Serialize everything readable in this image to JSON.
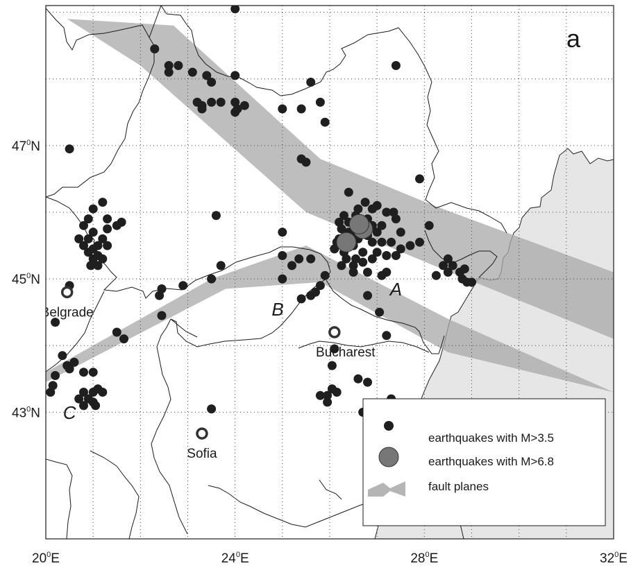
{
  "panel_label": "a",
  "axes": {
    "x_ticks": [
      {
        "value": 20,
        "deg": "20",
        "sup": "0",
        "hem": "E"
      },
      {
        "value": 24,
        "deg": "24",
        "sup": "0",
        "hem": "E"
      },
      {
        "value": 28,
        "deg": "28",
        "sup": "0",
        "hem": "E"
      },
      {
        "value": 32,
        "deg": "32",
        "sup": "0",
        "hem": "E"
      }
    ],
    "y_ticks": [
      {
        "value": 47,
        "deg": "47",
        "sup": "0",
        "hem": "N"
      },
      {
        "value": 45,
        "deg": "45",
        "sup": "0",
        "hem": "N"
      },
      {
        "value": 43,
        "deg": "43",
        "sup": "0",
        "hem": "N"
      }
    ],
    "lon_range": [
      20,
      32
    ],
    "lat_range": [
      41.1,
      49.1
    ],
    "grid": true
  },
  "cities": [
    {
      "name": "Belgrade",
      "lon": 20.45,
      "lat": 44.8
    },
    {
      "name": "Bucharest",
      "lon": 26.1,
      "lat": 44.2
    },
    {
      "name": "Sofia",
      "lon": 23.3,
      "lat": 42.68
    }
  ],
  "zone_labels": [
    {
      "text": "A",
      "lon": 27.4,
      "lat": 44.75
    },
    {
      "text": "B",
      "lon": 24.9,
      "lat": 44.45
    },
    {
      "text": "C",
      "lon": 20.5,
      "lat": 42.9
    }
  ],
  "fault_planes": [
    [
      [
        20.45,
        48.9
      ],
      [
        22.7,
        48.8
      ],
      [
        25.8,
        46.8
      ],
      [
        28.2,
        46.1
      ],
      [
        32,
        45.1
      ],
      [
        32,
        44.1
      ],
      [
        28.2,
        45.2
      ],
      [
        25.5,
        46.0
      ],
      [
        22.0,
        48.2
      ]
    ],
    [
      [
        20.0,
        43.6
      ],
      [
        23.5,
        45.0
      ],
      [
        25.5,
        45.5
      ],
      [
        28.5,
        44.4
      ],
      [
        32,
        43.3
      ],
      [
        28.5,
        43.9
      ],
      [
        25.8,
        44.95
      ],
      [
        23.8,
        44.85
      ],
      [
        20.0,
        43.45
      ]
    ]
  ],
  "legend": {
    "items": [
      {
        "label": "earthquakes with M>3.5",
        "symbol": "small-dot"
      },
      {
        "label": "earthquakes with M>6.8",
        "symbol": "large-dot"
      },
      {
        "label": "fault planes",
        "symbol": "fault-swatch"
      }
    ]
  },
  "earthquakes_large": [
    {
      "lon": 26.7,
      "lat": 45.75
    },
    {
      "lon": 26.62,
      "lat": 45.82
    },
    {
      "lon": 26.35,
      "lat": 45.55
    }
  ],
  "earthquakes_small": [
    [
      24.0,
      49.05
    ],
    [
      22.3,
      48.45
    ],
    [
      22.6,
      48.2
    ],
    [
      22.8,
      48.2
    ],
    [
      22.6,
      48.1
    ],
    [
      23.1,
      48.1
    ],
    [
      23.4,
      48.05
    ],
    [
      23.5,
      47.95
    ],
    [
      24.0,
      48.05
    ],
    [
      25.6,
      47.95
    ],
    [
      27.4,
      48.2
    ],
    [
      23.3,
      47.6
    ],
    [
      23.5,
      47.65
    ],
    [
      23.2,
      47.65
    ],
    [
      23.3,
      47.55
    ],
    [
      23.7,
      47.65
    ],
    [
      24.0,
      47.65
    ],
    [
      24.05,
      47.55
    ],
    [
      24.2,
      47.6
    ],
    [
      24.0,
      47.5
    ],
    [
      25.0,
      47.55
    ],
    [
      25.4,
      47.55
    ],
    [
      25.8,
      47.65
    ],
    [
      25.9,
      47.35
    ],
    [
      20.5,
      46.95
    ],
    [
      25.4,
      46.8
    ],
    [
      25.5,
      46.75
    ],
    [
      27.9,
      46.5
    ],
    [
      20.8,
      45.8
    ],
    [
      20.9,
      45.9
    ],
    [
      20.7,
      45.6
    ],
    [
      20.9,
      45.6
    ],
    [
      21.0,
      45.7
    ],
    [
      21.1,
      45.5
    ],
    [
      20.9,
      45.4
    ],
    [
      21.0,
      45.3
    ],
    [
      21.1,
      45.35
    ],
    [
      20.8,
      45.5
    ],
    [
      21.2,
      45.6
    ],
    [
      21.3,
      45.5
    ],
    [
      21.1,
      45.2
    ],
    [
      21.2,
      45.3
    ],
    [
      20.95,
      45.2
    ],
    [
      21.3,
      45.9
    ],
    [
      21.6,
      45.85
    ],
    [
      21.5,
      45.8
    ],
    [
      21.0,
      46.05
    ],
    [
      21.2,
      46.15
    ],
    [
      21.3,
      45.75
    ],
    [
      21.0,
      45.45
    ],
    [
      23.6,
      45.95
    ],
    [
      25.0,
      45.7
    ],
    [
      25.0,
      45.35
    ],
    [
      25.2,
      45.2
    ],
    [
      25.35,
      45.3
    ],
    [
      25.6,
      45.3
    ],
    [
      25.4,
      44.7
    ],
    [
      25.6,
      44.75
    ],
    [
      25.7,
      44.8
    ],
    [
      25.8,
      44.9
    ],
    [
      25.9,
      45.05
    ],
    [
      25.0,
      45.0
    ],
    [
      23.7,
      45.2
    ],
    [
      23.5,
      45.0
    ],
    [
      22.9,
      44.9
    ],
    [
      22.45,
      44.85
    ],
    [
      22.4,
      44.75
    ],
    [
      22.45,
      44.45
    ],
    [
      20.5,
      44.9
    ],
    [
      21.5,
      44.2
    ],
    [
      21.65,
      44.1
    ],
    [
      20.2,
      44.35
    ],
    [
      20.35,
      43.85
    ],
    [
      20.45,
      43.7
    ],
    [
      20.6,
      43.75
    ],
    [
      20.5,
      43.65
    ],
    [
      20.8,
      43.6
    ],
    [
      21.0,
      43.6
    ],
    [
      20.7,
      43.2
    ],
    [
      20.8,
      43.3
    ],
    [
      20.9,
      43.2
    ],
    [
      21.0,
      43.3
    ],
    [
      21.1,
      43.35
    ],
    [
      20.8,
      43.1
    ],
    [
      21.0,
      43.15
    ],
    [
      21.2,
      43.3
    ],
    [
      20.1,
      43.3
    ],
    [
      20.15,
      43.4
    ],
    [
      20.2,
      43.55
    ],
    [
      21.05,
      43.1
    ],
    [
      23.5,
      43.05
    ],
    [
      26.1,
      43.95
    ],
    [
      26.05,
      43.7
    ],
    [
      26.6,
      43.5
    ],
    [
      26.8,
      43.45
    ],
    [
      25.95,
      43.25
    ],
    [
      26.05,
      43.35
    ],
    [
      26.15,
      43.3
    ],
    [
      25.95,
      43.15
    ],
    [
      25.8,
      43.25
    ],
    [
      26.7,
      43.0
    ],
    [
      27.3,
      43.2
    ],
    [
      26.5,
      45.5
    ],
    [
      26.6,
      45.6
    ],
    [
      26.4,
      45.7
    ],
    [
      26.7,
      45.4
    ],
    [
      26.3,
      45.4
    ],
    [
      26.55,
      45.3
    ],
    [
      26.8,
      45.65
    ],
    [
      26.9,
      45.55
    ],
    [
      27.0,
      45.4
    ],
    [
      26.2,
      45.6
    ],
    [
      26.25,
      45.75
    ],
    [
      26.4,
      45.85
    ],
    [
      26.55,
      45.95
    ],
    [
      26.8,
      45.9
    ],
    [
      26.9,
      45.8
    ],
    [
      27.0,
      45.7
    ],
    [
      27.1,
      45.55
    ],
    [
      26.35,
      45.3
    ],
    [
      26.5,
      45.2
    ],
    [
      26.7,
      45.25
    ],
    [
      26.9,
      45.3
    ],
    [
      27.2,
      45.35
    ],
    [
      27.3,
      45.55
    ],
    [
      27.1,
      45.8
    ],
    [
      27.0,
      46.1
    ],
    [
      26.75,
      46.15
    ],
    [
      26.4,
      46.3
    ],
    [
      26.6,
      46.05
    ],
    [
      26.9,
      46.05
    ],
    [
      27.2,
      46.0
    ],
    [
      27.4,
      45.9
    ],
    [
      27.5,
      45.7
    ],
    [
      27.4,
      45.35
    ],
    [
      26.8,
      45.1
    ],
    [
      26.5,
      45.1
    ],
    [
      27.2,
      45.1
    ],
    [
      26.25,
      45.2
    ],
    [
      26.1,
      45.45
    ],
    [
      26.15,
      45.55
    ],
    [
      26.3,
      45.95
    ],
    [
      26.6,
      45.75
    ],
    [
      26.45,
      45.65
    ],
    [
      26.8,
      44.75
    ],
    [
      27.05,
      44.5
    ],
    [
      27.2,
      44.15
    ],
    [
      27.1,
      45.05
    ],
    [
      27.5,
      45.45
    ],
    [
      27.35,
      46.0
    ],
    [
      27.9,
      45.55
    ],
    [
      28.1,
      45.8
    ],
    [
      28.4,
      45.2
    ],
    [
      28.5,
      45.1
    ],
    [
      28.6,
      45.2
    ],
    [
      28.5,
      45.3
    ],
    [
      28.25,
      45.05
    ],
    [
      28.75,
      45.1
    ],
    [
      28.85,
      45.15
    ],
    [
      28.9,
      44.95
    ],
    [
      29.0,
      44.95
    ],
    [
      28.8,
      45.0
    ],
    [
      27.7,
      45.5
    ],
    [
      26.2,
      45.85
    ]
  ]
}
